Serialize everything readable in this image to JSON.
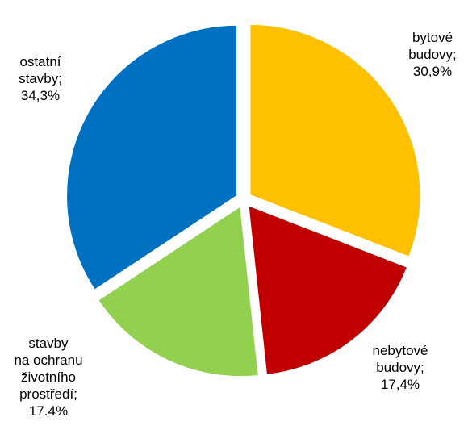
{
  "chart_data": {
    "type": "pie",
    "title": "",
    "slices": [
      {
        "label_lines": [
          "bytové",
          "budovy;",
          "30,9%"
        ],
        "value": 30.9,
        "color": "#FFC000"
      },
      {
        "label_lines": [
          "nebytové",
          "budovy;",
          "17,4%"
        ],
        "value": 17.4,
        "color": "#C00000"
      },
      {
        "label_lines": [
          "stavby",
          "na ochranu",
          "životního",
          "prostředí;",
          "17.4%"
        ],
        "value": 17.4,
        "color": "#92D050"
      },
      {
        "label_lines": [
          "ostatní",
          "stavby;",
          "34,3%"
        ],
        "value": 34.3,
        "color": "#0070C0"
      }
    ],
    "legend": "none",
    "labels_position": "outside"
  }
}
